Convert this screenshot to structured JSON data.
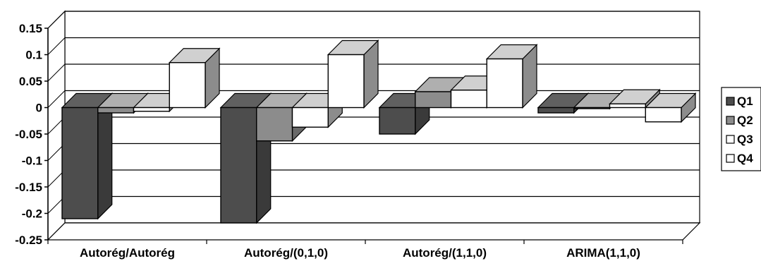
{
  "chart_data": {
    "type": "bar",
    "style": "3d-clustered-column",
    "categories": [
      "Autorég/Autorég",
      "Autorég/(0,1,0)",
      "Autorég/(1,1,0)",
      "ARIMA(1,1,0)"
    ],
    "series": [
      {
        "name": "Q1",
        "values": [
          -0.21,
          -0.218,
          -0.05,
          -0.01
        ],
        "color": "#4d4d4d"
      },
      {
        "name": "Q2",
        "values": [
          -0.01,
          -0.063,
          0.03,
          -0.002
        ],
        "color": "#8c8c8c"
      },
      {
        "name": "Q3",
        "values": [
          -0.007,
          -0.037,
          0.033,
          0.007
        ],
        "color": "#ffffff"
      },
      {
        "name": "Q4",
        "values": [
          0.085,
          0.1,
          0.092,
          -0.027
        ],
        "color": "#ffffff"
      }
    ],
    "ylim": [
      -0.25,
      0.15
    ],
    "yticks": [
      "0.15",
      "0.1",
      "0.05",
      "0",
      "-0.05",
      "-0.1",
      "-0.15",
      "-0.2",
      "-0.25"
    ],
    "ytick_values": [
      0.15,
      0.1,
      0.05,
      0,
      -0.05,
      -0.1,
      -0.15,
      -0.2,
      -0.25
    ],
    "grid": true,
    "legend_position": "right"
  }
}
